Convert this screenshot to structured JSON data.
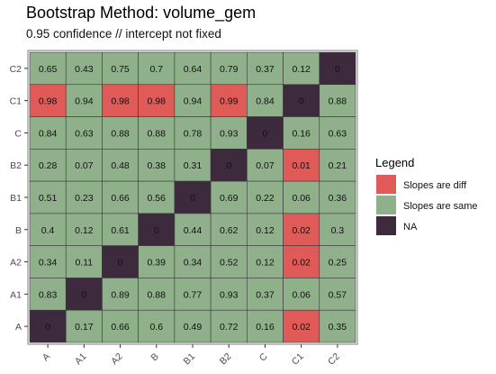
{
  "chart_data": {
    "type": "heatmap",
    "title": "Bootstrap Method: volume_gem",
    "subtitle": "0.95 confidence // intercept not fixed",
    "x_categories": [
      "A",
      "A1",
      "A2",
      "B",
      "B1",
      "B2",
      "C",
      "C1",
      "C2"
    ],
    "y_categories": [
      "A",
      "A1",
      "A2",
      "B",
      "B1",
      "B2",
      "C",
      "C1",
      "C2"
    ],
    "legend": {
      "title": "Legend",
      "placement": "right",
      "items": [
        {
          "key": "diff",
          "label": "Slopes are diff",
          "color": "#e05a57"
        },
        {
          "key": "same",
          "label": "Slopes are same",
          "color": "#8fb08a"
        },
        {
          "key": "na",
          "label": "NA",
          "color": "#3d2b3d"
        }
      ]
    },
    "rows": [
      {
        "y": "C2",
        "values": [
          "0.65",
          "0.43",
          "0.75",
          "0.7",
          "0.64",
          "0.79",
          "0.37",
          "0.12",
          "0"
        ],
        "status": [
          "same",
          "same",
          "same",
          "same",
          "same",
          "same",
          "same",
          "same",
          "na"
        ]
      },
      {
        "y": "C1",
        "values": [
          "0.98",
          "0.94",
          "0.98",
          "0.98",
          "0.94",
          "0.99",
          "0.84",
          "0",
          "0.88"
        ],
        "status": [
          "diff",
          "same",
          "diff",
          "diff",
          "same",
          "diff",
          "same",
          "na",
          "same"
        ]
      },
      {
        "y": "C",
        "values": [
          "0.84",
          "0.63",
          "0.88",
          "0.88",
          "0.78",
          "0.93",
          "0",
          "0.16",
          "0.63"
        ],
        "status": [
          "same",
          "same",
          "same",
          "same",
          "same",
          "same",
          "na",
          "same",
          "same"
        ]
      },
      {
        "y": "B2",
        "values": [
          "0.28",
          "0.07",
          "0.48",
          "0.38",
          "0.31",
          "0",
          "0.07",
          "0.01",
          "0.21"
        ],
        "status": [
          "same",
          "same",
          "same",
          "same",
          "same",
          "na",
          "same",
          "diff",
          "same"
        ]
      },
      {
        "y": "B1",
        "values": [
          "0.51",
          "0.23",
          "0.66",
          "0.56",
          "0",
          "0.69",
          "0.22",
          "0.06",
          "0.36"
        ],
        "status": [
          "same",
          "same",
          "same",
          "same",
          "na",
          "same",
          "same",
          "same",
          "same"
        ]
      },
      {
        "y": "B",
        "values": [
          "0.4",
          "0.12",
          "0.61",
          "0",
          "0.44",
          "0.62",
          "0.12",
          "0.02",
          "0.3"
        ],
        "status": [
          "same",
          "same",
          "same",
          "na",
          "same",
          "same",
          "same",
          "diff",
          "same"
        ]
      },
      {
        "y": "A2",
        "values": [
          "0.34",
          "0.11",
          "0",
          "0.39",
          "0.34",
          "0.52",
          "0.12",
          "0.02",
          "0.25"
        ],
        "status": [
          "same",
          "same",
          "na",
          "same",
          "same",
          "same",
          "same",
          "diff",
          "same"
        ]
      },
      {
        "y": "A1",
        "values": [
          "0.83",
          "0",
          "0.89",
          "0.88",
          "0.77",
          "0.93",
          "0.37",
          "0.06",
          "0.57"
        ],
        "status": [
          "same",
          "na",
          "same",
          "same",
          "same",
          "same",
          "same",
          "same",
          "same"
        ]
      },
      {
        "y": "A",
        "values": [
          "0",
          "0.17",
          "0.66",
          "0.6",
          "0.49",
          "0.72",
          "0.16",
          "0.02",
          "0.35"
        ],
        "status": [
          "na",
          "same",
          "same",
          "same",
          "same",
          "same",
          "same",
          "diff",
          "same"
        ]
      }
    ]
  }
}
